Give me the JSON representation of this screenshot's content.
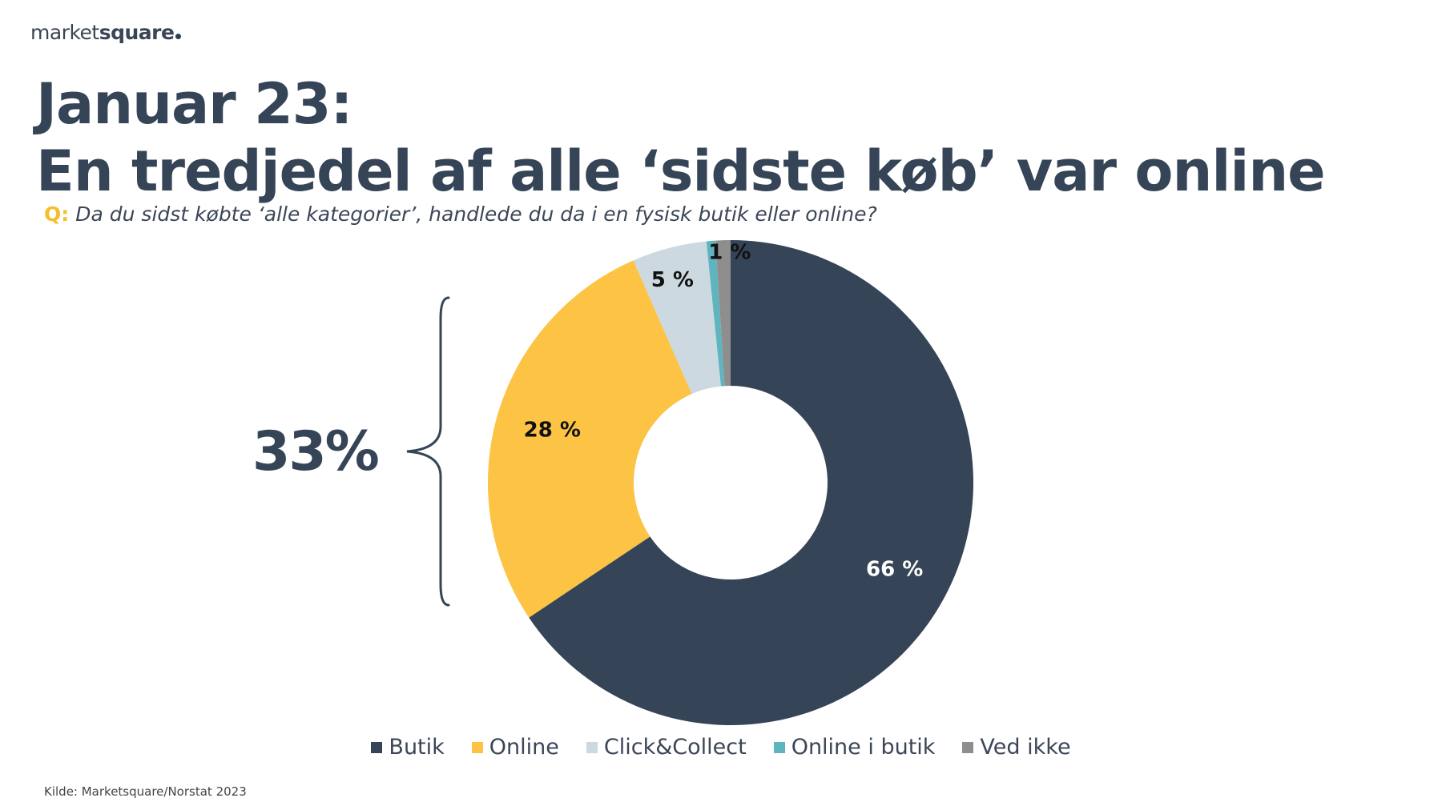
{
  "logo": {
    "light": "market",
    "bold": "square"
  },
  "title": {
    "line1": "Januar 23:",
    "line2": "En tredjedel af alle ‘sidste køb’ var online"
  },
  "question": {
    "prefix": "Q:",
    "text": "Da du sidst købte ‘alle kategorier’, handlede du da i en fysisk butik eller online?"
  },
  "callout": {
    "value": "33%"
  },
  "source": "Kilde: Marketsquare/Norstat 2023",
  "chart_data": {
    "type": "pie",
    "variant": "donut",
    "categories": [
      "Butik",
      "Online",
      "Click&Collect",
      "Online i butik",
      "Ved ikke"
    ],
    "values": [
      66,
      28,
      5,
      0.6,
      1
    ],
    "data_labels": [
      "66 %",
      "28 %",
      "5 %",
      "",
      "1 %"
    ],
    "colors": [
      "#354456",
      "#fcc344",
      "#ccd9e0",
      "#5fb4c0",
      "#8e8e8e"
    ],
    "label_colors": [
      "#ffffff",
      "#111111",
      "#111111",
      "#111111",
      "#111111"
    ],
    "legend_position": "bottom"
  }
}
